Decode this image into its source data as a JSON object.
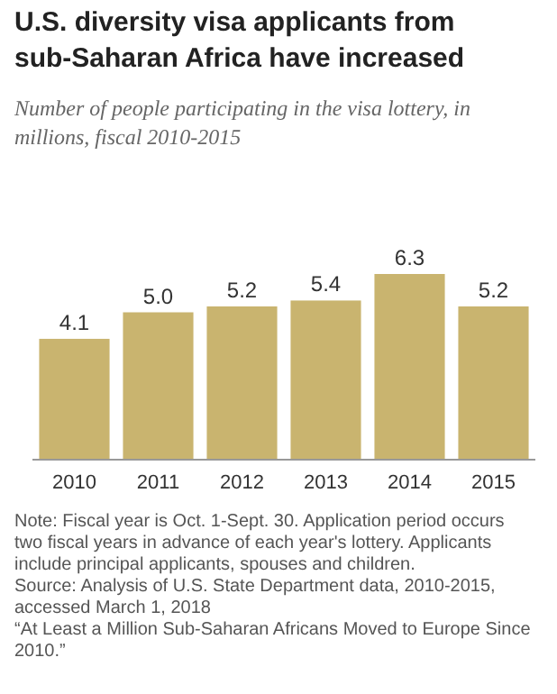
{
  "chart_data": {
    "type": "bar",
    "title": "U.S. diversity visa applicants from sub-Saharan Africa have increased",
    "subtitle": "Number of people participating in the visa lottery, in millions, fiscal 2010-2015",
    "categories": [
      "2010",
      "2011",
      "2012",
      "2013",
      "2014",
      "2015"
    ],
    "values": [
      4.1,
      5.0,
      5.2,
      5.4,
      6.3,
      5.2
    ],
    "value_labels": [
      "4.1",
      "5.0",
      "5.2",
      "5.4",
      "6.3",
      "5.2"
    ],
    "color": "#c9b46f",
    "annotations": [
      "Note: Fiscal year is Oct. 1-Sept. 30. Application period occurs two fiscal years in advance of each year's lottery. Applicants include principal applicants, spouses and children.",
      "Source: Analysis of U.S. State Department data, 2010-2015, accessed March 1, 2018",
      "“At Least a Million Sub-Saharan Africans Moved to Europe Since 2010.”"
    ]
  }
}
